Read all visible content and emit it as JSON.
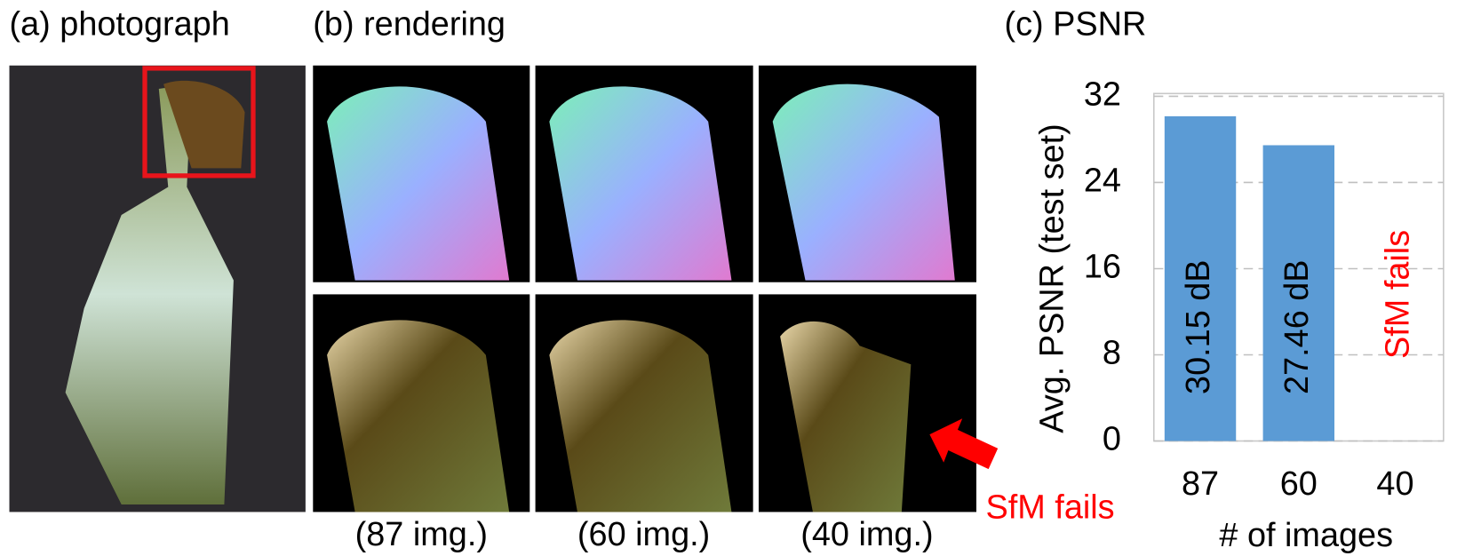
{
  "figure": {
    "panel_a": "(a) photograph",
    "panel_b": "(b) rendering",
    "captions": [
      "(87 img.)",
      "(60 img.)",
      "(40 img.)"
    ],
    "arrow_label": "SfM fails"
  },
  "chart_data": {
    "type": "bar",
    "title": "(c) PSNR",
    "x_label": "# of images",
    "y_label": "Avg. PSNR (test set)",
    "categories": [
      "87",
      "60",
      "40"
    ],
    "values": [
      30.15,
      27.46,
      null
    ],
    "value_labels": [
      "30.15 dB",
      "27.46 dB",
      null
    ],
    "annotation": "SfM fails",
    "color": "#5b9bd5",
    "ylim": [
      0,
      32
    ],
    "yticks": [
      0,
      8,
      16,
      24,
      32
    ],
    "grid": true
  }
}
